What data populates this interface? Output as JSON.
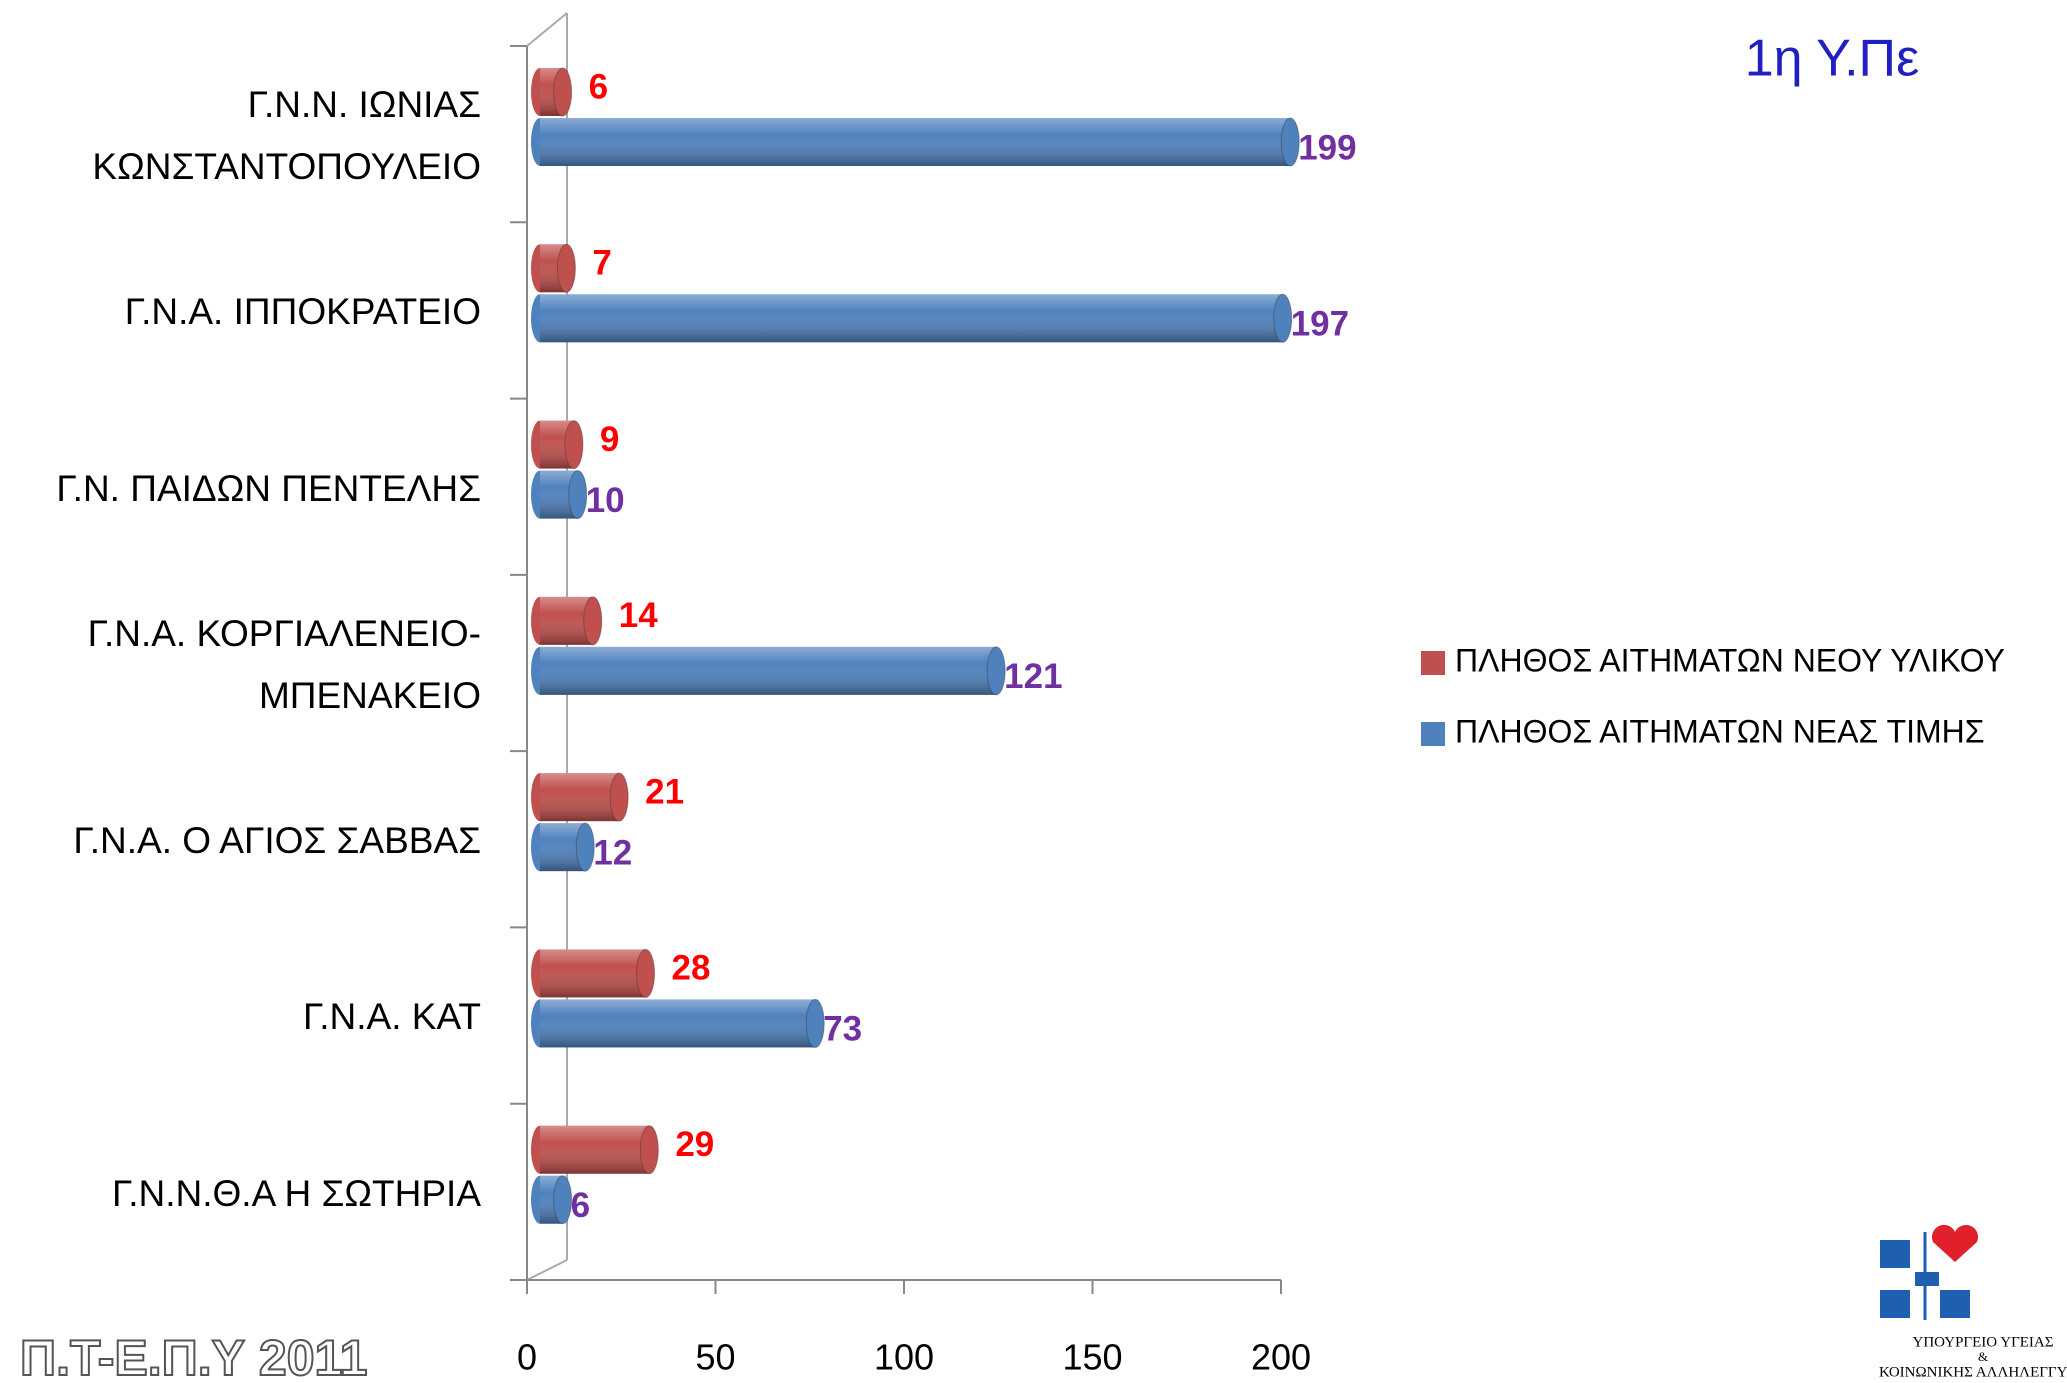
{
  "title": "1η Υ.Πε",
  "footer": "Π.Τ-Ε.Π.Υ 2011",
  "logo": {
    "lines": [
      "ΥΠΟΥΡΓΕΙΟ ΥΓΕΙΑΣ",
      "&",
      "ΚΟΙΝΩΝΙΚΗΣ ΑΛΛΗΛΕΓΓΥΗΣ"
    ]
  },
  "chart_data": {
    "type": "bar",
    "orientation": "horizontal",
    "categories": [
      "Γ.Ν.Ν. ΙΩΝΙΑΣ\nΚΩΝΣΤΑΝΤΟΠΟΥΛΕΙΟ",
      "Γ.Ν.Α. ΙΠΠΟΚΡΑΤΕΙΟ",
      "Γ.Ν. ΠΑΙΔΩΝ ΠΕΝΤΕΛΗΣ",
      "Γ.Ν.Α. ΚΟΡΓΙΑΛΕΝΕΙΟ-\nΜΠΕΝΑΚΕΙΟ",
      "Γ.Ν.Α. Ο ΑΓΙΟΣ ΣΑΒΒΑΣ",
      "Γ.Ν.Α. ΚΑΤ",
      "Γ.Ν.Ν.Θ.Α Η ΣΩΤΗΡΙΑ"
    ],
    "series": [
      {
        "name": "ΠΛΗΘΟΣ ΑΙΤΗΜΑΤΩΝ ΝΕΟΥ ΥΛΙΚΟΥ",
        "color": "#c0504d",
        "label_color": "#ff0000",
        "values": [
          6,
          7,
          9,
          14,
          21,
          28,
          29
        ]
      },
      {
        "name": "ΠΛΗΘΟΣ ΑΙΤΗΜΑΤΩΝ ΝΕΑΣ ΤΙΜΗΣ",
        "color": "#4f81bd",
        "label_color": "#7030a0",
        "values": [
          199,
          197,
          10,
          121,
          12,
          73,
          6
        ]
      }
    ],
    "xlim": [
      0,
      200
    ],
    "xticks": [
      0,
      50,
      100,
      150,
      200
    ],
    "legend": "right"
  }
}
